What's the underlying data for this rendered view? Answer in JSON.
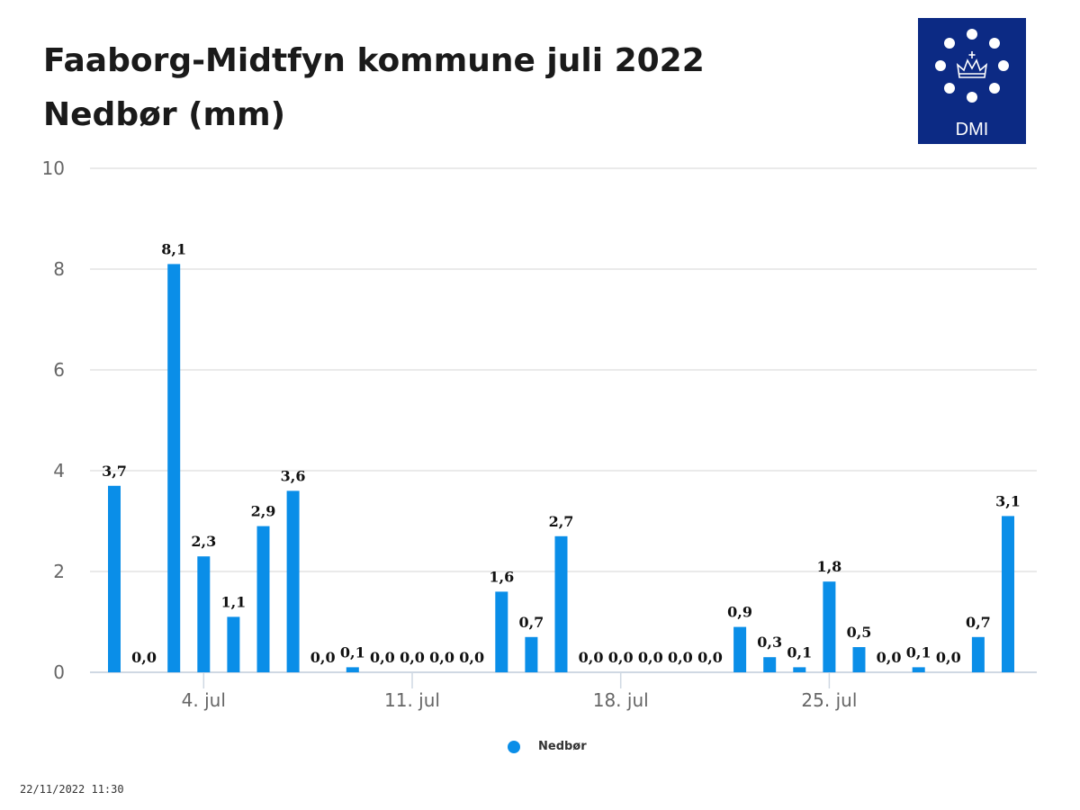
{
  "header": {
    "title_line1": "Faaborg-Midtfyn kommune juli 2022",
    "title_line2": "Nedbør (mm)"
  },
  "logo": {
    "text": "DMI",
    "background": "#0c2a84",
    "icon": "crown-icon"
  },
  "footer": {
    "timestamp": "22/11/2022 11:30"
  },
  "chart_data": {
    "type": "bar",
    "x": [
      "2022-07-01",
      "2022-07-02",
      "2022-07-03",
      "2022-07-04",
      "2022-07-05",
      "2022-07-06",
      "2022-07-07",
      "2022-07-08",
      "2022-07-09",
      "2022-07-10",
      "2022-07-11",
      "2022-07-12",
      "2022-07-13",
      "2022-07-14",
      "2022-07-15",
      "2022-07-16",
      "2022-07-17",
      "2022-07-18",
      "2022-07-19",
      "2022-07-20",
      "2022-07-21",
      "2022-07-22",
      "2022-07-23",
      "2022-07-24",
      "2022-07-25",
      "2022-07-26",
      "2022-07-27",
      "2022-07-28",
      "2022-07-29",
      "2022-07-30",
      "2022-07-31"
    ],
    "series": [
      {
        "name": "Nedbør",
        "color": "#0a8ee8",
        "values": [
          3.7,
          0.0,
          8.1,
          2.3,
          1.1,
          2.9,
          3.6,
          0.0,
          0.1,
          0.0,
          0.0,
          0.0,
          0.0,
          1.6,
          0.7,
          2.7,
          0.0,
          0.0,
          0.0,
          0.0,
          0.0,
          0.9,
          0.3,
          0.1,
          1.8,
          0.5,
          0.0,
          0.1,
          0.0,
          0.7,
          3.1
        ]
      }
    ],
    "data_labels": [
      "3,7",
      "0,0",
      "8,1",
      "2,3",
      "1,1",
      "2,9",
      "3,6",
      "0,0",
      "0,1",
      "0,0",
      "0,0",
      "0,0",
      "0,0",
      "1,6",
      "0,7",
      "2,7",
      "0,0",
      "0,0",
      "0,0",
      "0,0",
      "0,0",
      "0,9",
      "0,3",
      "0,1",
      "1,8",
      "0,5",
      "0,0",
      "0,1",
      "0,0",
      "0,7",
      "3,1"
    ],
    "x_ticks": [
      {
        "date": "2022-07-04",
        "label": "4. jul"
      },
      {
        "date": "2022-07-11",
        "label": "11. jul"
      },
      {
        "date": "2022-07-18",
        "label": "18. jul"
      },
      {
        "date": "2022-07-25",
        "label": "25. jul"
      }
    ],
    "y_ticks": [
      0,
      2,
      4,
      6,
      8,
      10
    ],
    "ylim": [
      0,
      10
    ],
    "grid": true,
    "legend_position": "bottom-center"
  }
}
